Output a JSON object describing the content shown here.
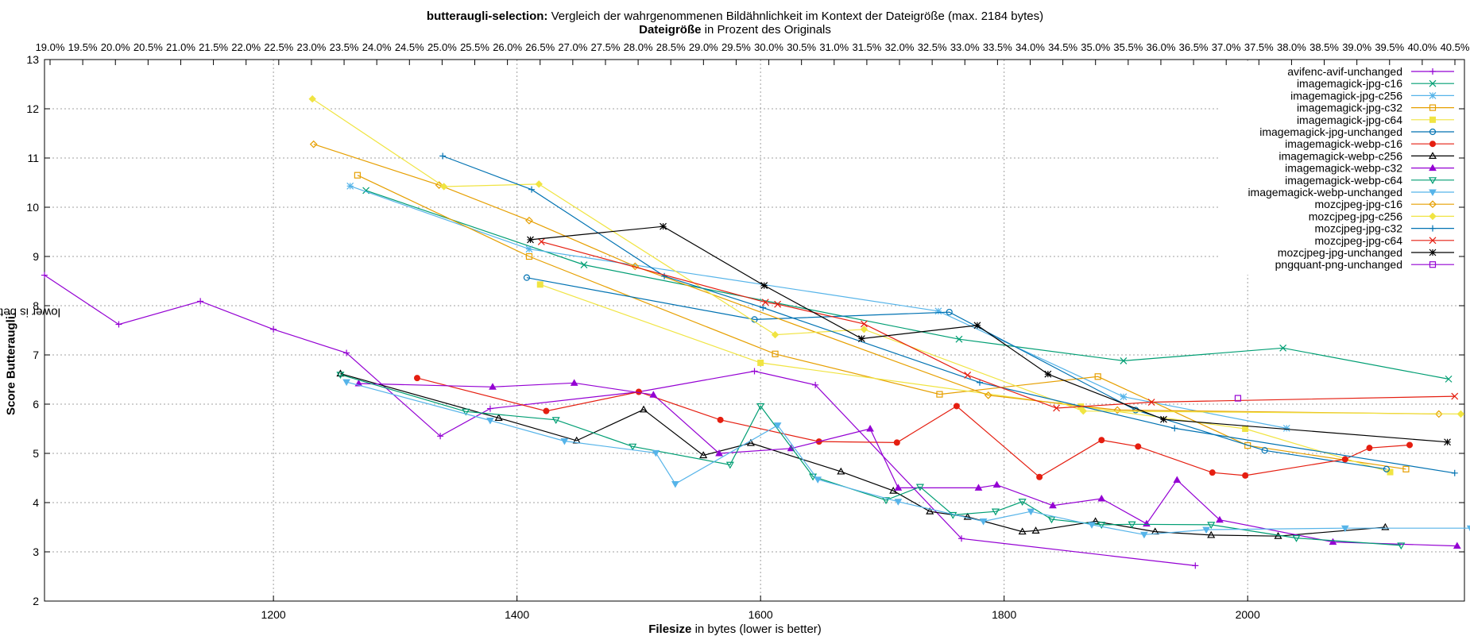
{
  "chart_data": {
    "type": "line",
    "title_bold": "butteraugli-selection:",
    "title_rest": " Vergleich der wahrgenommenen Bildähnlichkeit im Kontext der Dateigröße (max. 2184 bytes)",
    "subtitle_bold": "Dateigröße",
    "subtitle_rest": " in Prozent des Originals",
    "xlabel_bold": "Filesize",
    "xlabel_rest": " in bytes (lower is better)",
    "ylabel_bold": "Score Butteraugli:",
    "ylabel_rest": " lower is better quality",
    "xlim": [
      1012,
      2178
    ],
    "ylim": [
      2,
      13
    ],
    "x_ticks": [
      1200,
      1400,
      1600,
      1800,
      2000
    ],
    "y_ticks": [
      2,
      3,
      4,
      5,
      6,
      7,
      8,
      9,
      10,
      11,
      12,
      13
    ],
    "x2_ticks": [
      "19.0%",
      "19.5%",
      "20.0%",
      "20.5%",
      "21.0%",
      "21.5%",
      "22.0%",
      "22.5%",
      "23.0%",
      "23.5%",
      "24.0%",
      "24.5%",
      "25.0%",
      "25.5%",
      "26.0%",
      "26.5%",
      "27.0%",
      "27.5%",
      "28.0%",
      "28.5%",
      "29.0%",
      "29.5%",
      "30.0%",
      "30.5%",
      "31.0%",
      "31.5%",
      "32.0%",
      "32.5%",
      "33.0%",
      "33.5%",
      "34.0%",
      "34.5%",
      "35.0%",
      "35.5%",
      "36.0%",
      "36.5%",
      "37.0%",
      "37.5%",
      "38.0%",
      "38.5%",
      "39.0%",
      "39.5%",
      "40.0%",
      "40.5%"
    ],
    "grid": true,
    "legend_position": "top-right",
    "series": [
      {
        "name": "avifenc-avif-unchanged",
        "color": "#9400d3",
        "marker": "plus",
        "x": [
          1012,
          1073,
          1140,
          1200,
          1260,
          1337,
          1378,
          1500,
          1595,
          1645,
          1765,
          1957
        ],
        "y": [
          8.62,
          7.62,
          8.09,
          7.52,
          7.04,
          5.35,
          5.91,
          6.25,
          6.67,
          6.39,
          3.27,
          2.72
        ]
      },
      {
        "name": "imagemagick-jpg-c16",
        "color": "#009e73",
        "marker": "x",
        "x": [
          1276,
          1455,
          1763,
          1898,
          2029,
          2165
        ],
        "y": [
          10.34,
          8.83,
          7.32,
          6.88,
          7.14,
          6.51
        ]
      },
      {
        "name": "imagemagick-jpg-c256",
        "color": "#56b4e9",
        "marker": "star",
        "x": [
          1263,
          1410,
          1746,
          1898,
          2032
        ],
        "y": [
          10.43,
          9.15,
          7.89,
          6.15,
          5.51
        ]
      },
      {
        "name": "imagemagick-jpg-c32",
        "color": "#e69f00",
        "marker": "box",
        "x": [
          1269,
          1410,
          1612,
          1747,
          1877,
          2000,
          2130
        ],
        "y": [
          10.65,
          9.0,
          7.02,
          6.2,
          6.56,
          5.16,
          4.68
        ]
      },
      {
        "name": "imagemagick-jpg-c64",
        "color": "#f0e442",
        "marker": "fillbox",
        "x": [
          1419,
          1600,
          1863,
          1998,
          2117
        ],
        "y": [
          8.43,
          6.84,
          5.95,
          5.5,
          4.62
        ]
      },
      {
        "name": "imagemagick-jpg-unchanged",
        "color": "#0072b2",
        "marker": "circle",
        "x": [
          1408,
          1595,
          1755,
          1908,
          2014,
          2114
        ],
        "y": [
          8.57,
          7.72,
          7.87,
          5.88,
          5.06,
          4.68
        ]
      },
      {
        "name": "imagemagick-webp-c16",
        "color": "#e51e10",
        "marker": "fillcircle",
        "x": [
          1318,
          1424,
          1500,
          1567,
          1648,
          1712,
          1761,
          1829,
          1880,
          1910,
          1971,
          1998,
          2080,
          2100,
          2133
        ],
        "y": [
          6.53,
          5.86,
          6.25,
          5.68,
          5.24,
          5.22,
          5.96,
          4.52,
          5.27,
          5.14,
          4.61,
          4.55,
          4.88,
          5.11,
          5.17
        ]
      },
      {
        "name": "imagemagick-webp-c256",
        "color": "#000000",
        "marker": "triangle",
        "x": [
          1255,
          1385,
          1449,
          1504,
          1553,
          1592,
          1666,
          1709,
          1739,
          1770,
          1815,
          1826,
          1875,
          1924,
          1970,
          2025,
          2113
        ],
        "y": [
          6.62,
          5.72,
          5.26,
          5.89,
          4.96,
          5.21,
          4.63,
          4.24,
          3.82,
          3.71,
          3.41,
          3.43,
          3.62,
          3.41,
          3.34,
          3.32,
          3.5
        ]
      },
      {
        "name": "imagemagick-webp-c32",
        "color": "#9400d3",
        "marker": "filltriangle",
        "x": [
          1270,
          1380,
          1447,
          1512,
          1566,
          1625,
          1690,
          1713,
          1779,
          1794,
          1840,
          1880,
          1917,
          1942,
          1977,
          2070,
          2172
        ],
        "y": [
          6.42,
          6.35,
          6.43,
          6.19,
          5.0,
          5.1,
          5.5,
          4.3,
          4.3,
          4.36,
          3.94,
          4.08,
          3.57,
          4.46,
          3.65,
          3.2,
          3.12
        ]
      },
      {
        "name": "imagemagick-webp-c64",
        "color": "#009e73",
        "marker": "invtriangle",
        "x": [
          1255,
          1358,
          1432,
          1495,
          1575,
          1600,
          1643,
          1703,
          1731,
          1758,
          1793,
          1815,
          1839,
          1880,
          1905,
          1970,
          2040,
          2126
        ],
        "y": [
          6.6,
          5.85,
          5.68,
          5.14,
          4.77,
          5.96,
          4.53,
          4.05,
          4.32,
          3.75,
          3.82,
          4.02,
          3.66,
          3.55,
          3.56,
          3.55,
          3.28,
          3.13
        ]
      },
      {
        "name": "imagemagick-webp-unchanged",
        "color": "#56b4e9",
        "marker": "fillinvtriangle",
        "x": [
          1260,
          1378,
          1439,
          1514,
          1530,
          1614,
          1647,
          1713,
          1783,
          1822,
          1872,
          1915,
          1966,
          2080,
          2183
        ],
        "y": [
          6.45,
          5.67,
          5.25,
          5.01,
          4.38,
          5.57,
          4.47,
          4.02,
          3.62,
          3.82,
          3.55,
          3.35,
          3.45,
          3.48,
          3.48
        ]
      },
      {
        "name": "mozcjpeg-jpg-c16",
        "color": "#e69f00",
        "marker": "diamond",
        "x": [
          1233,
          1336,
          1410,
          1497,
          1787,
          1893,
          2157
        ],
        "y": [
          11.28,
          10.45,
          9.73,
          8.8,
          6.18,
          5.88,
          5.8
        ]
      },
      {
        "name": "mozcjpeg-jpg-c256",
        "color": "#f0e442",
        "marker": "filldiamond",
        "x": [
          1232,
          1340,
          1418,
          1612,
          1685,
          1865,
          2175
        ],
        "y": [
          12.2,
          10.42,
          10.47,
          7.41,
          7.52,
          5.86,
          5.8
        ]
      },
      {
        "name": "mozcjpeg-jpg-c32",
        "color": "#0072b2",
        "marker": "plus",
        "x": [
          1339,
          1412,
          1521,
          1602,
          1780,
          1940,
          2170
        ],
        "y": [
          11.04,
          10.36,
          8.6,
          7.96,
          6.44,
          5.51,
          4.6
        ]
      },
      {
        "name": "mozcjpeg-jpg-c64",
        "color": "#e51e10",
        "marker": "x",
        "x": [
          1420,
          1604,
          1614,
          1685,
          1770,
          1843,
          1921,
          2170
        ],
        "y": [
          9.3,
          8.07,
          8.03,
          7.63,
          6.59,
          5.92,
          6.04,
          6.16
        ]
      },
      {
        "name": "mozcjpeg-jpg-unchanged",
        "color": "#000000",
        "marker": "star",
        "x": [
          1411,
          1520,
          1603,
          1683,
          1778,
          1836,
          1931,
          2164
        ],
        "y": [
          9.34,
          9.61,
          8.41,
          7.33,
          7.6,
          6.61,
          5.69,
          5.23
        ]
      },
      {
        "name": "pngquant-png-unchanged",
        "color": "#9400d3",
        "marker": "box",
        "x": [
          1992
        ],
        "y": [
          6.12
        ]
      }
    ]
  }
}
